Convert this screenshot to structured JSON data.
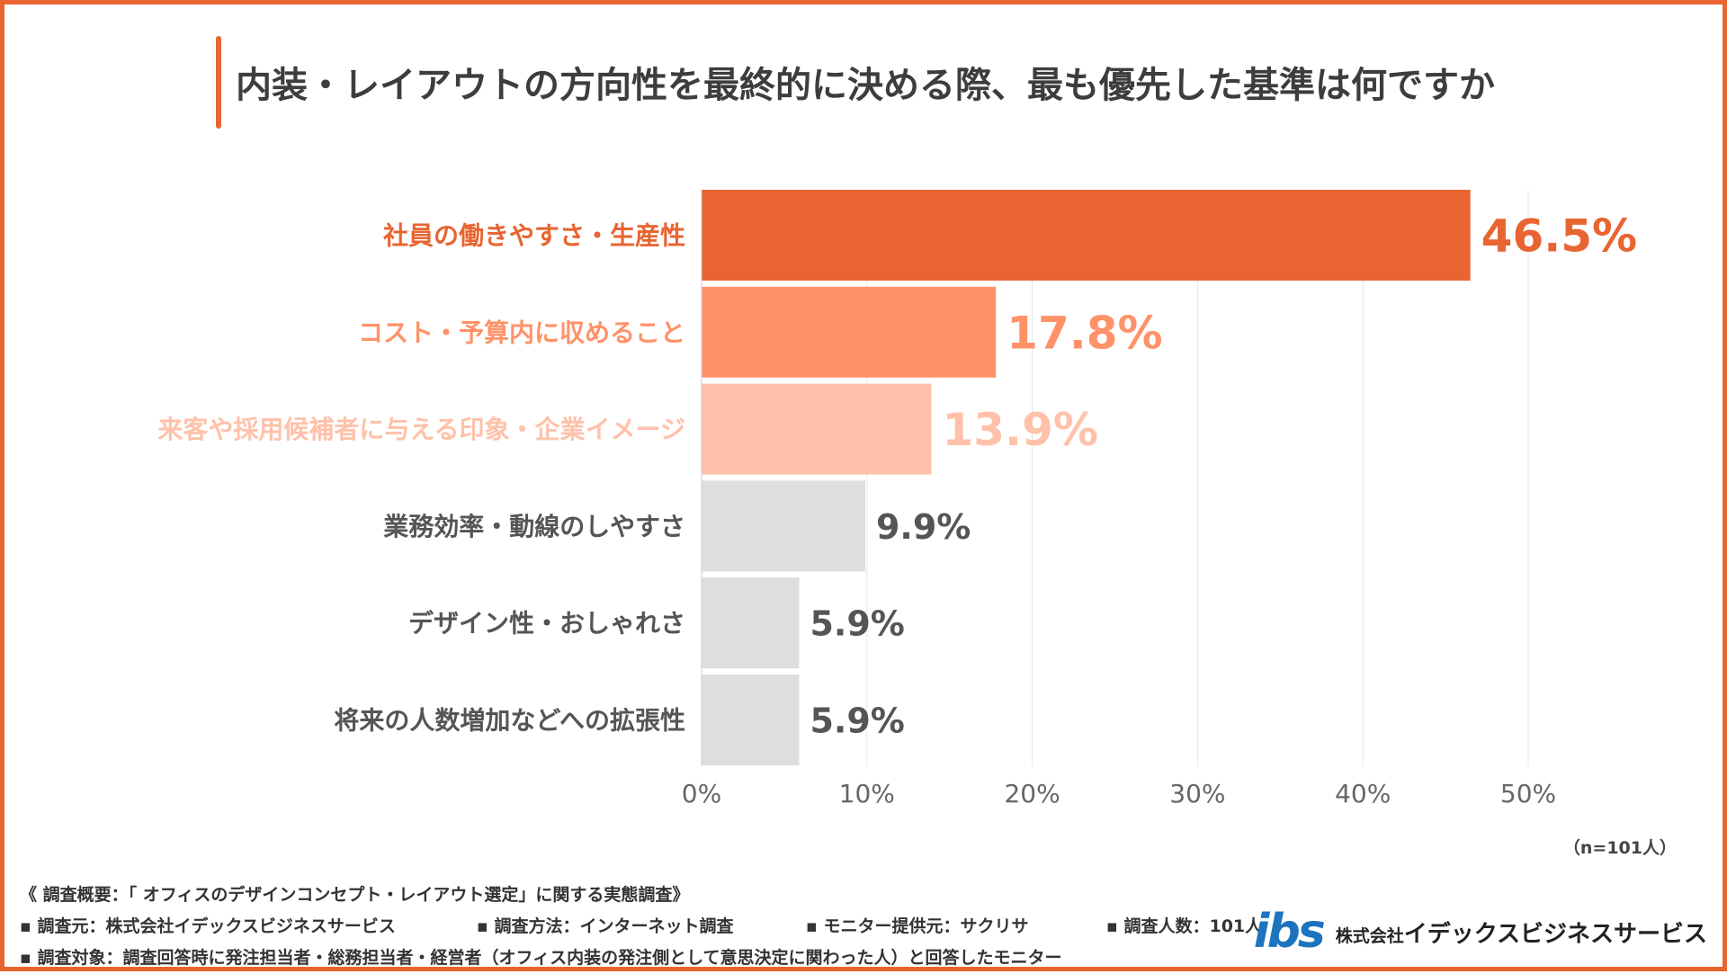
{
  "title": "内装・レイアウトの方向性を最終的に決める際、最も優先した基準は何ですか",
  "chart_data": {
    "type": "bar",
    "orientation": "horizontal",
    "categories": [
      "社員の働きやすさ・生産性",
      "コスト・予算内に収めること",
      "来客や採用候補者に与える印象・企業イメージ",
      "業務効率・動線のしやすさ",
      "デザイン性・おしゃれさ",
      "将来の人数増加などへの拡張性"
    ],
    "values": [
      46.5,
      17.8,
      13.9,
      9.9,
      5.9,
      5.9
    ],
    "value_labels": [
      "46.5%",
      "17.8%",
      "13.9%",
      "9.9%",
      "5.9%",
      "5.9%"
    ],
    "bar_colors": [
      "#E86431",
      "#FF9268",
      "#FFC1AA",
      "#DEDEDE",
      "#DEDEDE",
      "#DEDEDE"
    ],
    "label_colors": [
      "#E86431",
      "#FF9268",
      "#FFC1AA",
      "#555555",
      "#555555",
      "#555555"
    ],
    "xlim": [
      0,
      50
    ],
    "x_ticks": [
      0,
      10,
      20,
      30,
      40,
      50
    ],
    "x_tick_labels": [
      "0%",
      "10%",
      "20%",
      "30%",
      "40%",
      "50%"
    ],
    "grid": true
  },
  "sample_note": "（n=101人）",
  "notes": {
    "overview": "《 調査概要：「 オフィスのデザインコンセプト・レイアウト選定」に関する実態調査》",
    "source": "▪ 調査元：株式会社イデックスビジネスサービス",
    "method": "▪ 調査方法：インターネット調査",
    "provider": "▪ モニター提供元：サクリサ",
    "count": "▪ 調査人数：101人",
    "target": "▪ 調査対象：調査回答時に発注担当者・総務担当者・経営者（オフィス内装の発注側として意思決定に関わった人）と回答したモニター"
  },
  "logo": {
    "mark": "ibs",
    "prefix": "株式会社",
    "name": "イデックスビジネスサービス",
    "color": "#1E73BE"
  }
}
